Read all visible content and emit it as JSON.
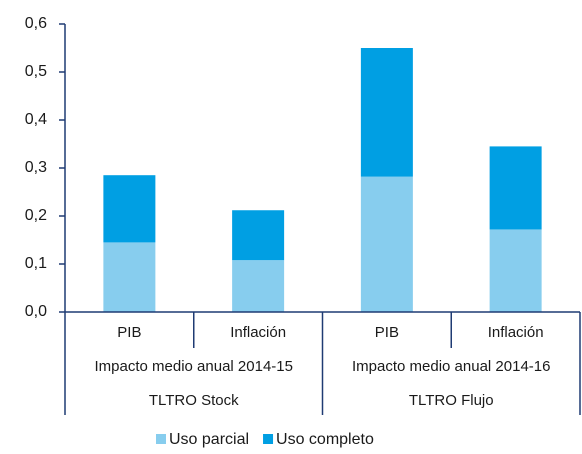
{
  "chart_data": {
    "type": "stacked_bar",
    "categories": [
      "PIB",
      "Inflación",
      "PIB",
      "Inflación"
    ],
    "category_levels": [
      [
        "Impacto medio anual 2014-15",
        "Impacto medio anual 2014-16"
      ],
      [
        "TLTRO Stock",
        "TLTRO Flujo"
      ]
    ],
    "series": [
      {
        "name": "Uso parcial",
        "color": "#87cdee",
        "values": [
          0.145,
          0.108,
          0.282,
          0.172
        ]
      },
      {
        "name": "Uso completo",
        "color": "#009fe3",
        "values": [
          0.14,
          0.104,
          0.268,
          0.173
        ]
      }
    ],
    "ylim": [
      0,
      0.6
    ],
    "yticks": [
      {
        "value": 0,
        "label": "0,0"
      },
      {
        "value": 0.1,
        "label": "0,1"
      },
      {
        "value": 0.2,
        "label": "0,2"
      },
      {
        "value": 0.3,
        "label": "0,3"
      },
      {
        "value": 0.4,
        "label": "0,4"
      },
      {
        "value": 0.5,
        "label": "0,5"
      },
      {
        "value": 0.6,
        "label": "0,6"
      }
    ],
    "legend": "bottom"
  }
}
